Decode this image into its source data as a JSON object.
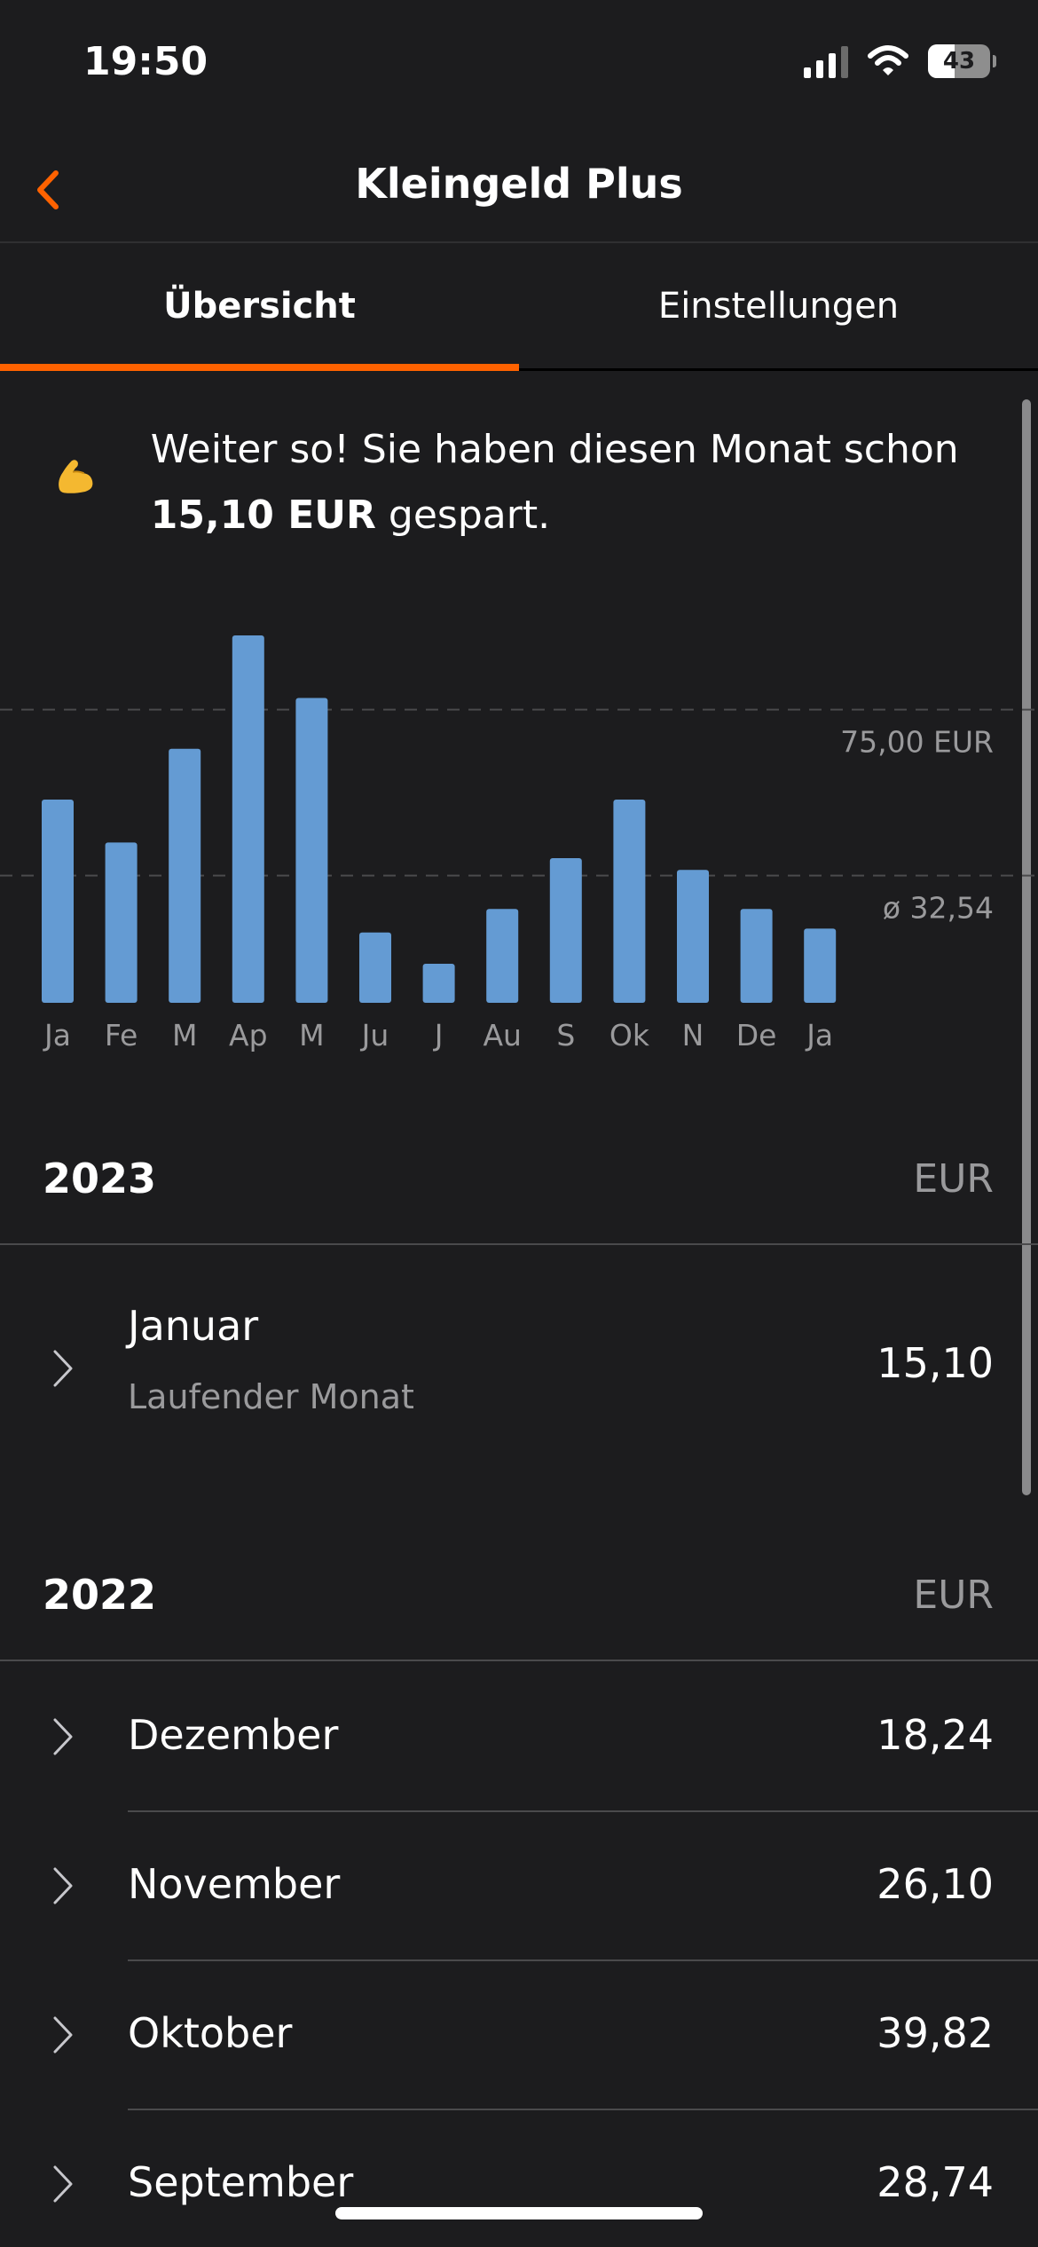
{
  "status_bar": {
    "time": "19:50",
    "battery": "43",
    "battery_level": 0.43
  },
  "nav": {
    "title": "Kleingeld Plus"
  },
  "tabs": [
    {
      "label": "Übersicht",
      "active": true
    },
    {
      "label": "Einstellungen",
      "active": false
    }
  ],
  "banner": {
    "icon": "flexed-biceps-icon",
    "text_before": "Weiter so! Sie haben diesen Monat schon ",
    "amount": "15,10 EUR",
    "text_after": " gespart."
  },
  "chart_data": {
    "type": "bar",
    "categories": [
      "Ja",
      "Fe",
      "M",
      "Ap",
      "M",
      "Ju",
      "J",
      "Au",
      "S",
      "Ok",
      "N",
      "De",
      "Ja"
    ],
    "values": [
      52,
      41,
      65,
      94,
      78,
      18,
      10,
      24,
      37,
      52,
      34,
      24,
      19
    ],
    "reference_lines": [
      {
        "value": 75,
        "label": "75,00 EUR"
      },
      {
        "value": 32.54,
        "label": "ø 32,54"
      }
    ],
    "ylim": [
      0,
      94
    ],
    "bar_color": "#649bd3",
    "title": "",
    "xlabel": "",
    "ylabel": ""
  },
  "sections": [
    {
      "year": "2023",
      "currency": "EUR",
      "rows": [
        {
          "month": "Januar",
          "subtitle": "Laufender Monat",
          "amount": "15,10"
        }
      ]
    },
    {
      "year": "2022",
      "currency": "EUR",
      "rows": [
        {
          "month": "Dezember",
          "amount": "18,24"
        },
        {
          "month": "November",
          "amount": "26,10"
        },
        {
          "month": "Oktober",
          "amount": "39,82"
        },
        {
          "month": "September",
          "amount": "28,74"
        }
      ]
    }
  ],
  "colors": {
    "accent": "#ff6200",
    "background": "#1c1c1e",
    "bar": "#649bd3",
    "muted": "#9a9a9c"
  }
}
